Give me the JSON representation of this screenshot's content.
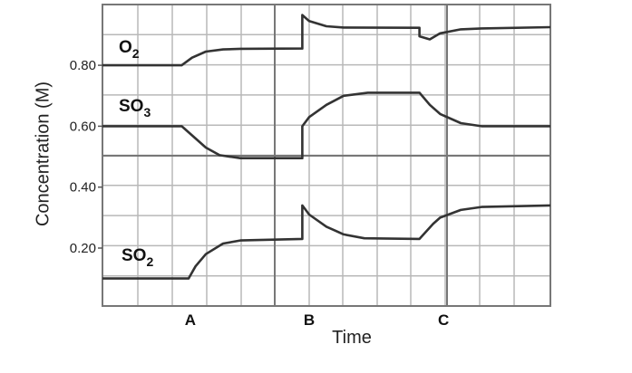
{
  "chart_data": {
    "type": "line",
    "xlabel": "Time",
    "ylabel": "Concentration (M)",
    "yticks": [
      "0.20",
      "0.40",
      "0.60",
      "0.80"
    ],
    "event_markers": [
      "A",
      "B",
      "C"
    ],
    "grid": true,
    "series": [
      {
        "name": "O2",
        "label_main": "O",
        "label_sub": "2",
        "points": [
          [
            0,
            0.8
          ],
          [
            2.3,
            0.8
          ],
          [
            2.6,
            0.825
          ],
          [
            3.0,
            0.845
          ],
          [
            3.5,
            0.852
          ],
          [
            4.0,
            0.854
          ],
          [
            5.8,
            0.855
          ],
          [
            5.8,
            0.965
          ],
          [
            6.0,
            0.945
          ],
          [
            6.5,
            0.928
          ],
          [
            7.0,
            0.924
          ],
          [
            9.2,
            0.923
          ],
          [
            9.2,
            0.895
          ],
          [
            9.5,
            0.885
          ],
          [
            9.8,
            0.905
          ],
          [
            10.4,
            0.918
          ],
          [
            11.0,
            0.921
          ],
          [
            13,
            0.925
          ]
        ]
      },
      {
        "name": "SO3",
        "label_main": "SO",
        "label_sub": "3",
        "points": [
          [
            0,
            0.6
          ],
          [
            2.3,
            0.6
          ],
          [
            2.6,
            0.57
          ],
          [
            3.0,
            0.53
          ],
          [
            3.4,
            0.505
          ],
          [
            4.0,
            0.495
          ],
          [
            5.8,
            0.495
          ],
          [
            5.8,
            0.6
          ],
          [
            6.0,
            0.63
          ],
          [
            6.5,
            0.67
          ],
          [
            7.0,
            0.7
          ],
          [
            7.7,
            0.71
          ],
          [
            9.2,
            0.71
          ],
          [
            9.5,
            0.67
          ],
          [
            9.8,
            0.64
          ],
          [
            10.4,
            0.61
          ],
          [
            11.0,
            0.6
          ],
          [
            13,
            0.6
          ]
        ]
      },
      {
        "name": "SO2",
        "label_main": "SO",
        "label_sub": "2",
        "points": [
          [
            0,
            0.1
          ],
          [
            2.5,
            0.1
          ],
          [
            2.7,
            0.14
          ],
          [
            3.0,
            0.18
          ],
          [
            3.5,
            0.215
          ],
          [
            4.0,
            0.225
          ],
          [
            5.8,
            0.23
          ],
          [
            5.8,
            0.34
          ],
          [
            6.0,
            0.31
          ],
          [
            6.5,
            0.27
          ],
          [
            7.0,
            0.245
          ],
          [
            7.6,
            0.232
          ],
          [
            9.2,
            0.23
          ],
          [
            9.6,
            0.28
          ],
          [
            9.8,
            0.3
          ],
          [
            10.4,
            0.325
          ],
          [
            11.0,
            0.335
          ],
          [
            13,
            0.34
          ]
        ]
      }
    ]
  }
}
